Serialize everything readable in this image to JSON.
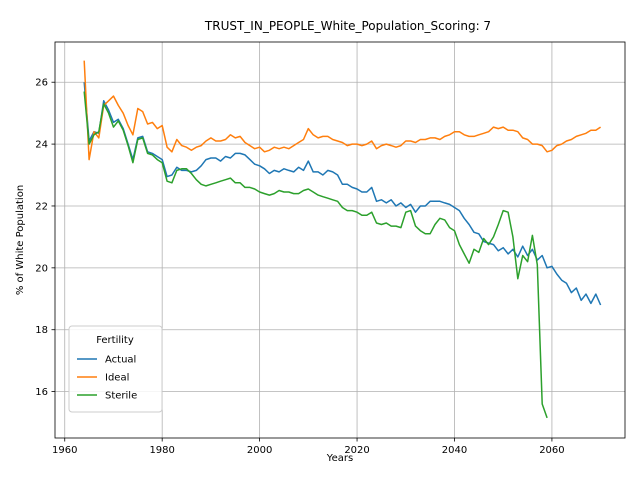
{
  "chart_data": {
    "type": "line",
    "title": "TRUST_IN_PEOPLE_White_Population_Scoring: 7",
    "xlabel": "Years",
    "ylabel": "% of White Population",
    "xlim": [
      1958,
      2075
    ],
    "ylim": [
      14.5,
      27.3
    ],
    "xticks": [
      1960,
      1980,
      2000,
      2020,
      2040,
      2060
    ],
    "yticks": [
      16,
      18,
      20,
      22,
      24,
      26
    ],
    "grid": true,
    "legend": {
      "title": "Fertility",
      "position": "lower-left"
    },
    "series": [
      {
        "name": "Actual",
        "color": "#1f77b4",
        "x": [
          1964,
          1965,
          1966,
          1967,
          1968,
          1969,
          1970,
          1971,
          1972,
          1973,
          1974,
          1975,
          1976,
          1977,
          1978,
          1979,
          1980,
          1981,
          1982,
          1983,
          1984,
          1985,
          1986,
          1987,
          1988,
          1989,
          1990,
          1991,
          1992,
          1993,
          1994,
          1995,
          1996,
          1997,
          1998,
          1999,
          2000,
          2001,
          2002,
          2003,
          2004,
          2005,
          2006,
          2007,
          2008,
          2009,
          2010,
          2011,
          2012,
          2013,
          2014,
          2015,
          2016,
          2017,
          2018,
          2019,
          2020,
          2021,
          2022,
          2023,
          2024,
          2025,
          2026,
          2027,
          2028,
          2029,
          2030,
          2031,
          2032,
          2033,
          2034,
          2035,
          2036,
          2037,
          2038,
          2039,
          2040,
          2041,
          2042,
          2043,
          2044,
          2045,
          2046,
          2047,
          2048,
          2049,
          2050,
          2051,
          2052,
          2053,
          2054,
          2055,
          2056,
          2057,
          2058,
          2059,
          2060,
          2061,
          2062,
          2063,
          2064,
          2065,
          2066,
          2067,
          2068,
          2069,
          2070
        ],
        "y": [
          26.0,
          24.1,
          24.4,
          24.35,
          25.4,
          25.1,
          24.7,
          24.8,
          24.5,
          24.0,
          23.5,
          24.2,
          24.25,
          23.75,
          23.7,
          23.6,
          23.5,
          22.95,
          23.0,
          23.25,
          23.15,
          23.15,
          23.1,
          23.15,
          23.3,
          23.5,
          23.55,
          23.55,
          23.45,
          23.6,
          23.55,
          23.7,
          23.7,
          23.65,
          23.5,
          23.35,
          23.3,
          23.2,
          23.05,
          23.15,
          23.1,
          23.2,
          23.15,
          23.1,
          23.25,
          23.15,
          23.45,
          23.1,
          23.1,
          23.0,
          23.15,
          23.1,
          23.0,
          22.7,
          22.7,
          22.6,
          22.55,
          22.45,
          22.45,
          22.6,
          22.15,
          22.2,
          22.1,
          22.2,
          22.0,
          22.1,
          21.95,
          22.05,
          21.8,
          22.0,
          22.0,
          22.15,
          22.15,
          22.15,
          22.1,
          22.05,
          21.95,
          21.85,
          21.6,
          21.4,
          21.15,
          21.1,
          20.85,
          20.8,
          20.75,
          20.55,
          20.65,
          20.45,
          20.6,
          20.35,
          20.7,
          20.4,
          20.6,
          20.25,
          20.4,
          20.0,
          20.05,
          19.8,
          19.6,
          19.5,
          19.2,
          19.35,
          18.95,
          19.15,
          18.85,
          19.15,
          18.8
        ]
      },
      {
        "name": "Ideal",
        "color": "#ff7f0e",
        "x": [
          1964,
          1965,
          1966,
          1967,
          1968,
          1969,
          1970,
          1971,
          1972,
          1973,
          1974,
          1975,
          1976,
          1977,
          1978,
          1979,
          1980,
          1981,
          1982,
          1983,
          1984,
          1985,
          1986,
          1987,
          1988,
          1989,
          1990,
          1991,
          1992,
          1993,
          1994,
          1995,
          1996,
          1997,
          1998,
          1999,
          2000,
          2001,
          2002,
          2003,
          2004,
          2005,
          2006,
          2007,
          2008,
          2009,
          2010,
          2011,
          2012,
          2013,
          2014,
          2015,
          2016,
          2017,
          2018,
          2019,
          2020,
          2021,
          2022,
          2023,
          2024,
          2025,
          2026,
          2027,
          2028,
          2029,
          2030,
          2031,
          2032,
          2033,
          2034,
          2035,
          2036,
          2037,
          2038,
          2039,
          2040,
          2041,
          2042,
          2043,
          2044,
          2045,
          2046,
          2047,
          2048,
          2049,
          2050,
          2051,
          2052,
          2053,
          2054,
          2055,
          2056,
          2057,
          2058,
          2059,
          2060,
          2061,
          2062,
          2063,
          2064,
          2065,
          2066,
          2067,
          2068,
          2069,
          2070
        ],
        "y": [
          26.7,
          23.5,
          24.4,
          24.2,
          25.25,
          25.4,
          25.55,
          25.25,
          25.0,
          24.6,
          24.3,
          25.15,
          25.05,
          24.65,
          24.7,
          24.5,
          24.6,
          23.9,
          23.75,
          24.15,
          23.95,
          23.9,
          23.8,
          23.9,
          23.95,
          24.1,
          24.2,
          24.1,
          24.1,
          24.15,
          24.3,
          24.2,
          24.25,
          24.05,
          23.95,
          23.85,
          23.9,
          23.75,
          23.8,
          23.9,
          23.85,
          23.9,
          23.85,
          23.95,
          24.05,
          24.15,
          24.5,
          24.3,
          24.2,
          24.25,
          24.25,
          24.15,
          24.1,
          24.05,
          23.95,
          24.0,
          24.0,
          23.95,
          24.0,
          24.1,
          23.85,
          23.95,
          24.0,
          23.95,
          23.9,
          23.95,
          24.1,
          24.1,
          24.05,
          24.15,
          24.15,
          24.2,
          24.2,
          24.15,
          24.25,
          24.3,
          24.4,
          24.4,
          24.3,
          24.25,
          24.25,
          24.3,
          24.35,
          24.4,
          24.55,
          24.5,
          24.55,
          24.45,
          24.45,
          24.4,
          24.2,
          24.15,
          24.0,
          24.0,
          23.95,
          23.75,
          23.8,
          23.95,
          24.0,
          24.1,
          24.15,
          24.25,
          24.3,
          24.35,
          24.45,
          24.45,
          24.55
        ]
      },
      {
        "name": "Sterile",
        "color": "#2ca02c",
        "x": [
          1964,
          1965,
          1966,
          1967,
          1968,
          1969,
          1970,
          1971,
          1972,
          1973,
          1974,
          1975,
          1976,
          1977,
          1978,
          1979,
          1980,
          1981,
          1982,
          1983,
          1984,
          1985,
          1986,
          1987,
          1988,
          1989,
          1990,
          1991,
          1992,
          1993,
          1994,
          1995,
          1996,
          1997,
          1998,
          1999,
          2000,
          2001,
          2002,
          2003,
          2004,
          2005,
          2006,
          2007,
          2008,
          2009,
          2010,
          2011,
          2012,
          2013,
          2014,
          2015,
          2016,
          2017,
          2018,
          2019,
          2020,
          2021,
          2022,
          2023,
          2024,
          2025,
          2026,
          2027,
          2028,
          2029,
          2030,
          2031,
          2032,
          2033,
          2034,
          2035,
          2036,
          2037,
          2038,
          2039,
          2040,
          2041,
          2042,
          2043,
          2044,
          2045,
          2046,
          2047,
          2048,
          2049,
          2050,
          2051,
          2052,
          2053,
          2054,
          2055,
          2056,
          2057,
          2058,
          2059
        ],
        "y": [
          25.7,
          24.0,
          24.3,
          24.4,
          25.3,
          25.0,
          24.55,
          24.75,
          24.45,
          23.95,
          23.4,
          24.15,
          24.2,
          23.7,
          23.65,
          23.5,
          23.4,
          22.8,
          22.75,
          23.15,
          23.2,
          23.2,
          23.05,
          22.85,
          22.7,
          22.65,
          22.7,
          22.75,
          22.8,
          22.85,
          22.9,
          22.75,
          22.75,
          22.6,
          22.6,
          22.55,
          22.45,
          22.4,
          22.35,
          22.4,
          22.5,
          22.45,
          22.45,
          22.4,
          22.4,
          22.5,
          22.55,
          22.45,
          22.35,
          22.3,
          22.25,
          22.2,
          22.15,
          21.95,
          21.85,
          21.85,
          21.8,
          21.7,
          21.7,
          21.8,
          21.45,
          21.4,
          21.45,
          21.35,
          21.35,
          21.3,
          21.8,
          21.85,
          21.35,
          21.2,
          21.1,
          21.1,
          21.4,
          21.6,
          21.55,
          21.3,
          21.2,
          20.75,
          20.45,
          20.15,
          20.6,
          20.5,
          20.95,
          20.75,
          21.0,
          21.4,
          21.85,
          21.8,
          21.0,
          19.65,
          20.4,
          20.2,
          21.05,
          20.1,
          15.6,
          15.15
        ]
      }
    ]
  }
}
